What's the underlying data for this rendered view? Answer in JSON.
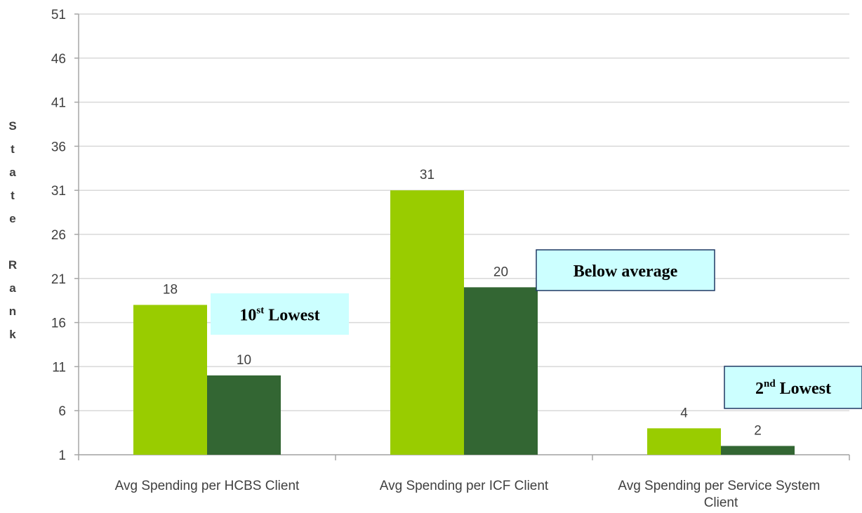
{
  "chart_data": {
    "type": "bar",
    "y_label": "State Rank",
    "categories": [
      "Avg Spending per HCBS Client",
      "Avg Spending per ICF Client",
      "Avg Spending per Service System Client"
    ],
    "series": [
      {
        "color": "#99cc00",
        "values": [
          18,
          31,
          4
        ]
      },
      {
        "color": "#336633",
        "values": [
          10,
          20,
          2
        ]
      }
    ],
    "ylim": [
      1,
      51
    ],
    "yticks": [
      1,
      6,
      11,
      16,
      21,
      26,
      31,
      36,
      41,
      46,
      51
    ],
    "grid": true,
    "annotations": [
      {
        "text": "10",
        "superscript": "st",
        "suffix": " Lowest"
      },
      {
        "text": "Below average"
      },
      {
        "text": "2",
        "superscript": "nd",
        "suffix": "  Lowest"
      }
    ]
  }
}
